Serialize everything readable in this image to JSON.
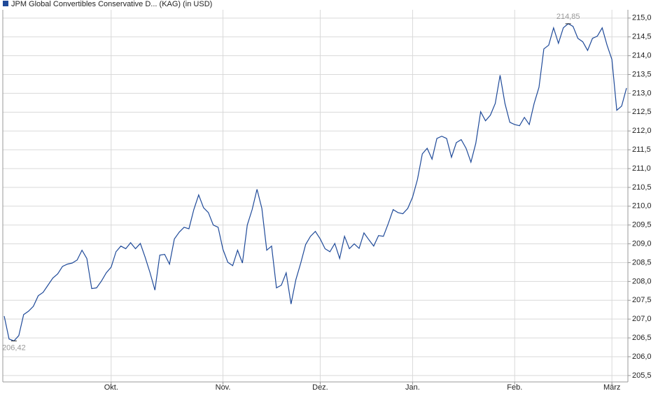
{
  "chart_data": {
    "type": "line",
    "series": [
      {
        "name": "JPM Global Convertibles Conservative D... (KAG) (in USD)",
        "color": "#1f4a99",
        "values": [
          207.08,
          206.47,
          206.42,
          206.56,
          207.12,
          207.21,
          207.34,
          207.62,
          207.71,
          207.9,
          208.09,
          208.2,
          208.4,
          208.46,
          208.49,
          208.57,
          208.83,
          208.61,
          207.81,
          207.83,
          208.01,
          208.23,
          208.38,
          208.79,
          208.94,
          208.87,
          209.03,
          208.87,
          209.01,
          208.64,
          208.23,
          207.77,
          208.7,
          208.72,
          208.46,
          209.13,
          209.31,
          209.44,
          209.4,
          209.91,
          210.3,
          209.96,
          209.83,
          209.5,
          209.44,
          208.85,
          208.51,
          208.42,
          208.83,
          208.49,
          209.5,
          209.91,
          210.45,
          209.94,
          208.83,
          208.94,
          207.83,
          207.9,
          208.23,
          207.4,
          208.05,
          208.49,
          208.98,
          209.2,
          209.33,
          209.13,
          208.87,
          208.79,
          209.01,
          208.61,
          209.2,
          208.87,
          209.0,
          208.88,
          209.29,
          209.11,
          208.94,
          209.22,
          209.2,
          209.54,
          209.91,
          209.83,
          209.8,
          209.94,
          210.24,
          210.71,
          211.39,
          211.54,
          211.25,
          211.8,
          211.86,
          211.8,
          211.3,
          211.69,
          211.77,
          211.54,
          211.17,
          211.67,
          212.51,
          212.27,
          212.42,
          212.73,
          213.48,
          212.73,
          212.23,
          212.17,
          212.14,
          212.36,
          212.17,
          212.73,
          213.16,
          214.18,
          214.28,
          214.74,
          214.33,
          214.74,
          214.85,
          214.78,
          214.46,
          214.37,
          214.14,
          214.46,
          214.52,
          214.74,
          214.28,
          213.9,
          212.55,
          212.66,
          213.14
        ],
        "value_labels": [
          null,
          null,
          "206,42",
          null,
          null,
          null,
          null,
          null,
          null,
          null,
          null,
          null,
          null,
          null,
          null,
          null,
          null,
          null,
          null,
          null,
          null,
          null,
          null,
          null,
          null,
          null,
          null,
          null,
          null,
          null,
          null,
          null,
          null,
          null,
          null,
          null,
          null,
          null,
          null,
          null,
          null,
          null,
          null,
          null,
          null,
          null,
          null,
          null,
          null,
          null,
          null,
          null,
          null,
          null,
          null,
          null,
          null,
          null,
          null,
          null,
          null,
          null,
          null,
          null,
          null,
          null,
          null,
          null,
          null,
          null,
          null,
          null,
          null,
          null,
          null,
          null,
          null,
          null,
          null,
          null,
          null,
          null,
          null,
          null,
          null,
          null,
          null,
          null,
          null,
          null,
          null,
          null,
          null,
          null,
          null,
          null,
          null,
          null,
          null,
          null,
          null,
          null,
          null,
          null,
          null,
          null,
          null,
          null,
          null,
          null,
          null,
          null,
          null,
          null,
          null,
          null,
          "214,85",
          null,
          null,
          null,
          null,
          null,
          null,
          null,
          null,
          null,
          null,
          null,
          null
        ]
      }
    ],
    "categories": [
      null,
      null,
      null,
      null,
      null,
      null,
      null,
      null,
      null,
      null,
      null,
      null,
      null,
      null,
      null,
      null,
      null,
      null,
      null,
      null,
      null,
      null,
      "Okt.",
      null,
      null,
      null,
      null,
      null,
      null,
      null,
      null,
      null,
      null,
      null,
      null,
      null,
      null,
      null,
      null,
      null,
      null,
      null,
      null,
      null,
      null,
      "Nov.",
      null,
      null,
      null,
      null,
      null,
      null,
      null,
      null,
      null,
      null,
      null,
      null,
      null,
      null,
      null,
      null,
      null,
      null,
      null,
      "Dez.",
      null,
      null,
      null,
      null,
      null,
      null,
      null,
      null,
      null,
      null,
      null,
      null,
      null,
      null,
      null,
      null,
      null,
      null,
      "Jan.",
      null,
      null,
      null,
      null,
      null,
      null,
      null,
      null,
      null,
      null,
      null,
      null,
      null,
      null,
      null,
      null,
      null,
      null,
      null,
      null,
      "Feb.",
      null,
      null,
      null,
      null,
      null,
      null,
      null,
      null,
      null,
      null,
      null,
      null,
      null,
      null,
      null,
      null,
      null,
      null,
      null,
      "März",
      null,
      null,
      null
    ],
    "ylim": [
      205.33,
      215.22
    ],
    "yticks": [
      {
        "value": 205.5,
        "label": "205,5"
      },
      {
        "value": 206.0,
        "label": "206,0"
      },
      {
        "value": 206.5,
        "label": "206,5"
      },
      {
        "value": 207.0,
        "label": "207,0"
      },
      {
        "value": 207.5,
        "label": "207,5"
      },
      {
        "value": 208.0,
        "label": "208,0"
      },
      {
        "value": 208.5,
        "label": "208,5"
      },
      {
        "value": 209.0,
        "label": "209,0"
      },
      {
        "value": 209.5,
        "label": "209,5"
      },
      {
        "value": 210.0,
        "label": "210,0"
      },
      {
        "value": 210.5,
        "label": "210,5"
      },
      {
        "value": 211.0,
        "label": "211,0"
      },
      {
        "value": 211.5,
        "label": "211,5"
      },
      {
        "value": 212.0,
        "label": "212,0"
      },
      {
        "value": 212.5,
        "label": "212,5"
      },
      {
        "value": 213.0,
        "label": "213,0"
      },
      {
        "value": 213.5,
        "label": "213,5"
      },
      {
        "value": 214.0,
        "label": "214,0"
      },
      {
        "value": 214.5,
        "label": "214,5"
      },
      {
        "value": 215.0,
        "label": "215,0"
      }
    ],
    "grid": true,
    "legend": "top-left"
  }
}
